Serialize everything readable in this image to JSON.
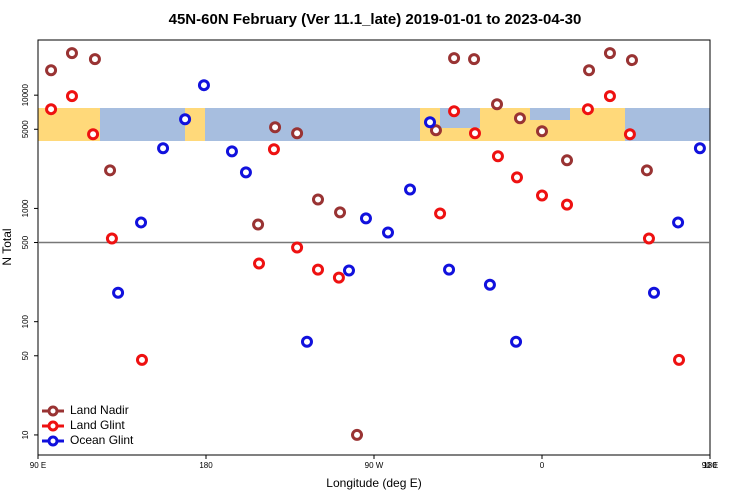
{
  "chart_data": {
    "type": "scatter",
    "title": "45N-60N February (Ver 11.1_late)   2019-01-01 to 2023-04-30",
    "x_label": "Longitude (deg E)",
    "y_label": "N Total",
    "log_y": true,
    "legend": "bottom-left",
    "reference_line": 500,
    "xlim": [
      90,
      450
    ],
    "ylim": [
      6.65,
      30700
    ],
    "xticks": [
      {
        "value": 90,
        "label": "90 E"
      },
      {
        "value": 180,
        "label": "180"
      },
      {
        "value": 270,
        "label": "90 W"
      },
      {
        "value": 360,
        "label": "0"
      },
      {
        "value": 450,
        "label": "90 E"
      },
      {
        "value": 540,
        "label": "180"
      }
    ],
    "yticks": [
      10,
      50,
      100,
      500,
      1000,
      5000,
      10000
    ],
    "series": [
      {
        "name": "Land Nadir",
        "color": "#993333",
        "x": [
          97,
          108.2,
          120.5,
          128.6,
          207.9,
          217,
          228.8,
          240,
          251.8,
          260.9,
          303.2,
          312.9,
          323.6,
          335.9,
          348.2,
          360,
          373.4,
          385.2,
          396.4,
          408.2,
          416.2
        ],
        "values": [
          16600,
          23500,
          20800,
          2170,
          721,
          5210,
          4610,
          1200,
          922,
          10,
          4900,
          21250,
          20800,
          8320,
          6260,
          4800,
          2660,
          16600,
          23500,
          20400,
          2170
        ]
      },
      {
        "name": "Land Glint",
        "color": "#ee1111",
        "x": [
          97,
          108.2,
          119.5,
          129.6,
          145.7,
          208.4,
          216.4,
          228.8,
          240,
          251.2,
          305.4,
          312.9,
          324.1,
          336.4,
          346.6,
          360,
          373.4,
          384.6,
          396.4,
          407.1,
          417.3,
          433.4
        ],
        "values": [
          7520,
          9800,
          4520,
          543,
          46,
          326,
          3330,
          452,
          288,
          245,
          903,
          7210,
          4610,
          2890,
          1880,
          1300,
          1080,
          7520,
          9800,
          4520,
          543,
          46
        ]
      },
      {
        "name": "Ocean Glint",
        "color": "#1111dd",
        "x": [
          132.9,
          145.2,
          157,
          168.8,
          178.9,
          193.9,
          201.4,
          234.1,
          256.6,
          265.7,
          277.5,
          289.3,
          300,
          310.2,
          332.1,
          346.1,
          420,
          432.9,
          444.6
        ],
        "values": [
          180,
          752,
          3400,
          6130,
          12250,
          3190,
          2080,
          66.5,
          283,
          816,
          613,
          1470,
          5770,
          288,
          212,
          66.5,
          180,
          752,
          3400
        ]
      }
    ]
  }
}
